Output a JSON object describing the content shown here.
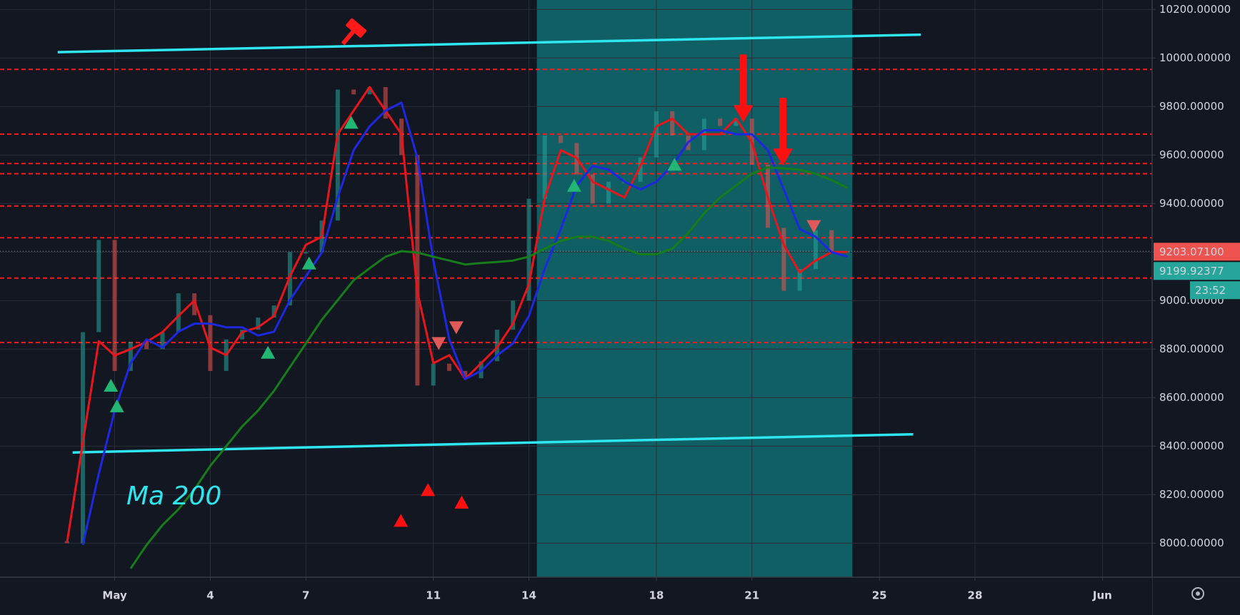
{
  "chart_data": {
    "type": "line",
    "xlim": [
      -2.6,
      33.56
    ],
    "ylim": [
      7860,
      10239
    ],
    "xticks": [
      {
        "value": 1,
        "label": "May"
      },
      4,
      7,
      11,
      14,
      18,
      21,
      25,
      28,
      {
        "value": 32,
        "label": "Jun"
      }
    ],
    "yticks": [
      {
        "value": 8000,
        "label": "8000.00000"
      },
      {
        "value": 8200,
        "label": "8200.00000"
      },
      {
        "value": 8400,
        "label": "8400.00000"
      },
      {
        "value": 8600,
        "label": "8600.00000"
      },
      {
        "value": 8800,
        "label": "8800.00000"
      },
      {
        "value": 9000,
        "label": "9000.00000"
      },
      {
        "value": 9200,
        "label": "9200.00000"
      },
      {
        "value": 9400,
        "label": "9400.00000"
      },
      {
        "value": 9600,
        "label": "9600.00000"
      },
      {
        "value": 9800,
        "label": "9800.00000"
      },
      {
        "value": 10000,
        "label": "10000.00000"
      },
      {
        "value": 10200,
        "label": "10200.00000"
      }
    ],
    "grid": true,
    "x": [
      -0.5,
      0,
      0.5,
      1,
      1.5,
      2,
      2.5,
      3,
      3.5,
      4,
      4.5,
      5,
      5.5,
      6,
      6.5,
      7,
      7.5,
      8,
      8.5,
      9,
      9.5,
      10,
      10.5,
      11,
      11.5,
      12,
      12.5,
      13,
      13.5,
      14,
      14.5,
      15,
      15.5,
      16,
      16.5,
      17,
      17.5,
      18,
      18.5,
      19,
      19.5,
      20,
      20.5,
      21,
      21.5,
      22,
      22.5,
      23,
      23.5,
      24
    ],
    "price": {
      "up_color": "#26a69a",
      "down_color": "#ef5350",
      "values": [
        8000,
        8870,
        9250,
        8710,
        8830,
        8800,
        8870,
        9030,
        8940,
        8710,
        8840,
        8880,
        8930,
        8980,
        9200,
        9200,
        9330,
        9870,
        9850,
        9880,
        9750,
        9600,
        8650,
        8740,
        8710,
        8680,
        8750,
        8880,
        9000,
        9420,
        9680,
        9650,
        9520,
        9400,
        9490,
        9490,
        9590,
        9780,
        9680,
        9620,
        9750,
        9720,
        9750,
        9560,
        9300,
        9040,
        9130,
        9290,
        9200,
        9203
      ]
    },
    "series": [
      {
        "color": "#e8161b",
        "values": [
          8000,
          8416,
          8833,
          8774,
          8800,
          8830,
          8870,
          8937,
          9000,
          8807,
          8775,
          8870,
          8890,
          8937,
          9100,
          9230,
          9263,
          9686,
          9783,
          9880,
          9783,
          9686,
          9035,
          8742,
          8775,
          8677,
          8742,
          8807,
          8905,
          9067,
          9425,
          9620,
          9588,
          9490,
          9458,
          9425,
          9555,
          9718,
          9750,
          9686,
          9686,
          9686,
          9750,
          9653,
          9425,
          9230,
          9116,
          9165,
          9200,
          9200
        ]
      },
      {
        "color": "#1d28e0",
        "values": [
          null,
          7993,
          8286,
          8547,
          8742,
          8840,
          8807,
          8872,
          8905,
          8905,
          8890,
          8890,
          8856,
          8872,
          9002,
          9100,
          9198,
          9425,
          9620,
          9718,
          9783,
          9816,
          9588,
          9165,
          8840,
          8677,
          8710,
          8774,
          8823,
          8937,
          9133,
          9295,
          9474,
          9555,
          9540,
          9490,
          9458,
          9490,
          9555,
          9653,
          9702,
          9702,
          9686,
          9686,
          9620,
          9458,
          9295,
          9263,
          9200,
          9181
        ]
      },
      {
        "color": "#167d1a",
        "values": [
          null,
          null,
          null,
          null,
          7896,
          7993,
          8075,
          8140,
          8221,
          8319,
          8400,
          8481,
          8547,
          8628,
          8726,
          8823,
          8921,
          9002,
          9084,
          9133,
          9181,
          9204,
          9198,
          9181,
          9165,
          9149,
          9155,
          9159,
          9165,
          9181,
          9214,
          9246,
          9263,
          9263,
          9246,
          9214,
          9191,
          9191,
          9214,
          9279,
          9360,
          9425,
          9474,
          9523,
          9549,
          9545,
          9539,
          9523,
          9497,
          9464
        ]
      }
    ],
    "levels": {
      "color": "#ff1a1a",
      "values": [
        9953,
        9686,
        9565,
        9523,
        9390,
        9259,
        9093,
        8827
      ]
    },
    "trend_lines": {
      "color": "#2ee6f0",
      "lines": [
        {
          "x": [
            -0.79,
            26.3
          ],
          "y": [
            10024,
            10096
          ]
        },
        {
          "x": [
            -0.32,
            26.06
          ],
          "y": [
            8374,
            8449
          ]
        }
      ]
    },
    "highlight": {
      "color": "#0f6368",
      "x": [
        14.25,
        24.15
      ]
    },
    "signals": [
      {
        "shape": "triangle-up",
        "color": "#22b573",
        "x": [
          0.88,
          1.07,
          5.81,
          7.1,
          8.42,
          15.42,
          18.57
        ],
        "y": [
          8651,
          8566,
          8787,
          9155,
          9735,
          9475,
          9562
        ]
      },
      {
        "shape": "triangle-down",
        "color": "#e05a5a",
        "x": [
          11.17,
          11.72,
          22.94
        ],
        "y": [
          8823,
          8888,
          9305
        ]
      },
      {
        "shape": "triangle-up",
        "color": "#ff1010",
        "x": [
          9.98,
          10.83,
          11.89
        ],
        "y": [
          8094,
          8221,
          8169
        ]
      },
      {
        "shape": "arrow-down",
        "color": "#ff1010",
        "x": [
          20.73,
          21.97
        ],
        "y": [
          9735,
          9556
        ]
      }
    ],
    "price_labels": [
      {
        "value": 9203.071,
        "label": "9203.07100",
        "color": "#ef5350"
      },
      {
        "value": 9199.92377,
        "label": "9199.92377",
        "color": "#26a69a"
      }
    ],
    "countdown": "23:52",
    "annotation": "Ma 200"
  }
}
